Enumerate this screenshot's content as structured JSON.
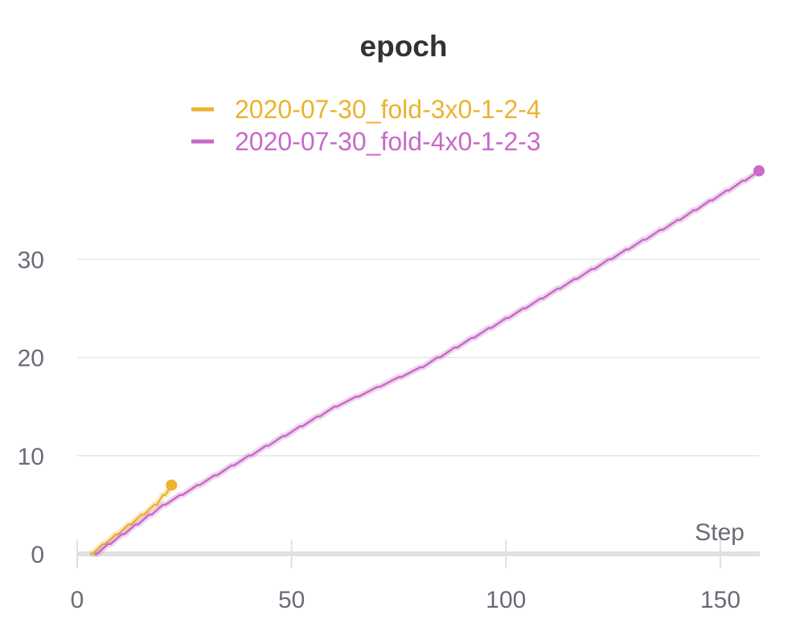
{
  "chart_data": {
    "type": "line",
    "title": "epoch",
    "xlabel": "Step",
    "ylabel": "",
    "xlim": [
      0,
      160
    ],
    "ylim": [
      0,
      40
    ],
    "xticks": [
      0,
      50,
      100,
      150
    ],
    "yticks": [
      0,
      10,
      20,
      30
    ],
    "grid": true,
    "legend_position": "top-center",
    "series": [
      {
        "name": "2020-07-30_fold-3x0-1-2-4",
        "color": "#ebb331",
        "x": [
          3,
          6,
          9,
          12,
          15,
          18,
          22
        ],
        "y": [
          0,
          1,
          2,
          3,
          4,
          5,
          7
        ]
      },
      {
        "name": "2020-07-30_fold-4x0-1-2-3",
        "color": "#c86ac8",
        "x": [
          4,
          20,
          40,
          60,
          80,
          100,
          120,
          140,
          159
        ],
        "y": [
          0,
          5,
          10,
          15,
          19,
          24,
          29,
          34,
          39
        ]
      }
    ]
  }
}
